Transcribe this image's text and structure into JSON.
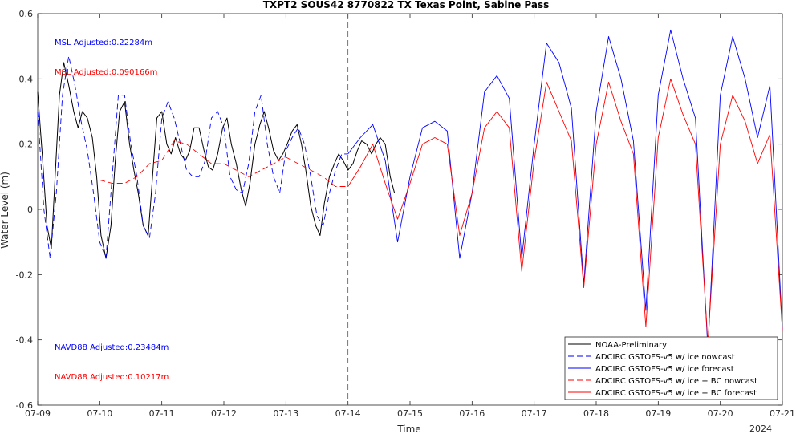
{
  "chart_data": {
    "type": "line",
    "title": "TXPT2 SOUS42 8770822 TX Texas Point, Sabine Pass",
    "xlabel": "Time",
    "ylabel": "Water Level (m)",
    "x_ticks": [
      "07-09",
      "07-10",
      "07-11",
      "07-12",
      "07-13",
      "07-14",
      "07-15",
      "07-16",
      "07-17",
      "07-18",
      "07-19",
      "07-20",
      "07-21"
    ],
    "x_year_label": "2024",
    "xlim": [
      0,
      12
    ],
    "ylim": [
      -0.6,
      0.6
    ],
    "y_ticks": [
      -0.6,
      -0.4,
      -0.2,
      0,
      0.2,
      0.4,
      0.6
    ],
    "y_tick_labels": [
      "-0.6",
      "-0.4",
      "-0.2",
      "0",
      "0.2",
      "0.4",
      "0.6"
    ],
    "nowcast_forecast_split": 5,
    "annotations": [
      {
        "text": "MSL Adjusted:0.22284m",
        "color": "#0000ff"
      },
      {
        "text": "MSL Adjusted:0.090166m",
        "color": "#ff0000"
      },
      {
        "text": "NAVD88 Adjusted:0.23484m",
        "color": "#0000ff"
      },
      {
        "text": "NAVD88 Adjusted:0.10217m",
        "color": "#ff0000"
      }
    ],
    "legend_position": "bottom-right",
    "series": [
      {
        "name": "NOAA-Preliminary",
        "color": "#000000",
        "dash": "solid",
        "x": [
          0.0,
          0.08,
          0.15,
          0.22,
          0.28,
          0.35,
          0.42,
          0.5,
          0.58,
          0.65,
          0.72,
          0.8,
          0.88,
          0.95,
          1.02,
          1.1,
          1.18,
          1.25,
          1.32,
          1.4,
          1.48,
          1.55,
          1.62,
          1.7,
          1.78,
          1.85,
          1.92,
          2.0,
          2.08,
          2.15,
          2.22,
          2.3,
          2.38,
          2.45,
          2.52,
          2.6,
          2.68,
          2.75,
          2.82,
          2.9,
          2.98,
          3.05,
          3.12,
          3.2,
          3.28,
          3.35,
          3.42,
          3.5,
          3.58,
          3.65,
          3.72,
          3.8,
          3.88,
          3.95,
          4.02,
          4.1,
          4.18,
          4.25,
          4.32,
          4.4,
          4.48,
          4.55,
          4.62,
          4.7,
          4.78,
          4.85,
          4.92,
          5.0,
          5.08,
          5.15,
          5.22,
          5.3,
          5.38,
          5.45,
          5.52,
          5.6,
          5.68,
          5.75
        ],
        "y": [
          0.36,
          0.15,
          -0.05,
          -0.12,
          0.1,
          0.35,
          0.45,
          0.38,
          0.3,
          0.25,
          0.3,
          0.28,
          0.22,
          0.1,
          -0.08,
          -0.15,
          -0.05,
          0.15,
          0.3,
          0.33,
          0.2,
          0.12,
          0.05,
          -0.05,
          -0.08,
          0.1,
          0.28,
          0.3,
          0.2,
          0.17,
          0.22,
          0.17,
          0.15,
          0.18,
          0.25,
          0.25,
          0.18,
          0.13,
          0.12,
          0.17,
          0.25,
          0.28,
          0.2,
          0.14,
          0.06,
          0.01,
          0.08,
          0.2,
          0.26,
          0.3,
          0.25,
          0.18,
          0.15,
          0.17,
          0.2,
          0.24,
          0.26,
          0.2,
          0.12,
          0.01,
          -0.05,
          -0.08,
          0.02,
          0.1,
          0.14,
          0.17,
          0.15,
          0.12,
          0.14,
          0.18,
          0.21,
          0.2,
          0.17,
          0.2,
          0.22,
          0.2,
          0.1,
          0.05
        ]
      },
      {
        "name": "ADCIRC GSTOFS-v5 w/ ice nowcast",
        "color": "#0000ff",
        "dash": "dashed",
        "x": [
          0.0,
          0.1,
          0.2,
          0.3,
          0.4,
          0.5,
          0.6,
          0.7,
          0.8,
          0.9,
          1.0,
          1.1,
          1.2,
          1.3,
          1.4,
          1.5,
          1.6,
          1.7,
          1.8,
          1.9,
          2.0,
          2.1,
          2.2,
          2.3,
          2.4,
          2.5,
          2.6,
          2.7,
          2.8,
          2.9,
          3.0,
          3.1,
          3.2,
          3.3,
          3.4,
          3.5,
          3.6,
          3.7,
          3.8,
          3.9,
          4.0,
          4.1,
          4.2,
          4.3,
          4.4,
          4.5,
          4.6,
          4.7,
          4.8,
          4.9,
          5.0
        ],
        "y": [
          0.3,
          0.0,
          -0.15,
          0.05,
          0.35,
          0.47,
          0.38,
          0.27,
          0.18,
          0.05,
          -0.1,
          -0.15,
          0.1,
          0.35,
          0.35,
          0.2,
          0.1,
          -0.05,
          -0.09,
          0.05,
          0.28,
          0.33,
          0.28,
          0.2,
          0.12,
          0.1,
          0.1,
          0.15,
          0.28,
          0.3,
          0.25,
          0.1,
          0.06,
          0.05,
          0.14,
          0.3,
          0.35,
          0.2,
          0.1,
          0.05,
          0.18,
          0.22,
          0.25,
          0.2,
          0.1,
          -0.02,
          -0.05,
          0.05,
          0.12,
          0.17,
          0.17
        ]
      },
      {
        "name": "ADCIRC GSTOFS-v5 w/ ice forecast",
        "color": "#0000ff",
        "dash": "solid",
        "x": [
          5.0,
          5.2,
          5.4,
          5.6,
          5.8,
          6.0,
          6.2,
          6.4,
          6.6,
          6.8,
          7.0,
          7.2,
          7.4,
          7.6,
          7.8,
          8.0,
          8.2,
          8.4,
          8.6,
          8.8,
          9.0,
          9.2,
          9.4,
          9.6,
          9.8,
          10.0,
          10.2,
          10.4,
          10.6,
          10.8,
          11.0,
          11.2,
          11.4,
          11.6,
          11.8,
          12.0
        ],
        "y": [
          0.17,
          0.22,
          0.26,
          0.15,
          -0.1,
          0.1,
          0.25,
          0.27,
          0.24,
          -0.15,
          0.05,
          0.36,
          0.41,
          0.34,
          -0.15,
          0.2,
          0.51,
          0.45,
          0.31,
          -0.23,
          0.3,
          0.53,
          0.4,
          0.21,
          -0.31,
          0.35,
          0.55,
          0.4,
          0.28,
          -0.43,
          0.35,
          0.53,
          0.4,
          0.22,
          0.38,
          -0.37
        ]
      },
      {
        "name": "ADCIRC GSTOFS-v5 w/ ice + BC nowcast",
        "color": "#ff0000",
        "dash": "dashed",
        "x": [
          1.0,
          1.2,
          1.4,
          1.6,
          1.8,
          2.0,
          2.2,
          2.4,
          2.6,
          2.8,
          3.0,
          3.2,
          3.4,
          3.6,
          3.8,
          4.0,
          4.2,
          4.4,
          4.6,
          4.8,
          5.0
        ],
        "y": [
          0.09,
          0.08,
          0.08,
          0.1,
          0.14,
          0.15,
          0.21,
          0.2,
          0.17,
          0.14,
          0.14,
          0.12,
          0.1,
          0.12,
          0.14,
          0.16,
          0.14,
          0.12,
          0.1,
          0.07,
          0.07
        ]
      },
      {
        "name": "ADCIRC GSTOFS-v5 w/ ice + BC forecast",
        "color": "#ff0000",
        "dash": "solid",
        "x": [
          5.0,
          5.2,
          5.4,
          5.6,
          5.8,
          6.0,
          6.2,
          6.4,
          6.6,
          6.8,
          7.0,
          7.2,
          7.4,
          7.6,
          7.8,
          8.0,
          8.2,
          8.4,
          8.6,
          8.8,
          9.0,
          9.2,
          9.4,
          9.6,
          9.8,
          10.0,
          10.2,
          10.4,
          10.6,
          10.8,
          11.0,
          11.2,
          11.4,
          11.6,
          11.8,
          12.0
        ],
        "y": [
          0.07,
          0.13,
          0.2,
          0.08,
          -0.03,
          0.08,
          0.2,
          0.22,
          0.2,
          -0.08,
          0.05,
          0.25,
          0.3,
          0.25,
          -0.19,
          0.15,
          0.39,
          0.3,
          0.21,
          -0.24,
          0.2,
          0.39,
          0.27,
          0.17,
          -0.36,
          0.22,
          0.4,
          0.29,
          0.2,
          -0.41,
          0.2,
          0.35,
          0.27,
          0.14,
          0.23,
          -0.37
        ]
      }
    ]
  }
}
